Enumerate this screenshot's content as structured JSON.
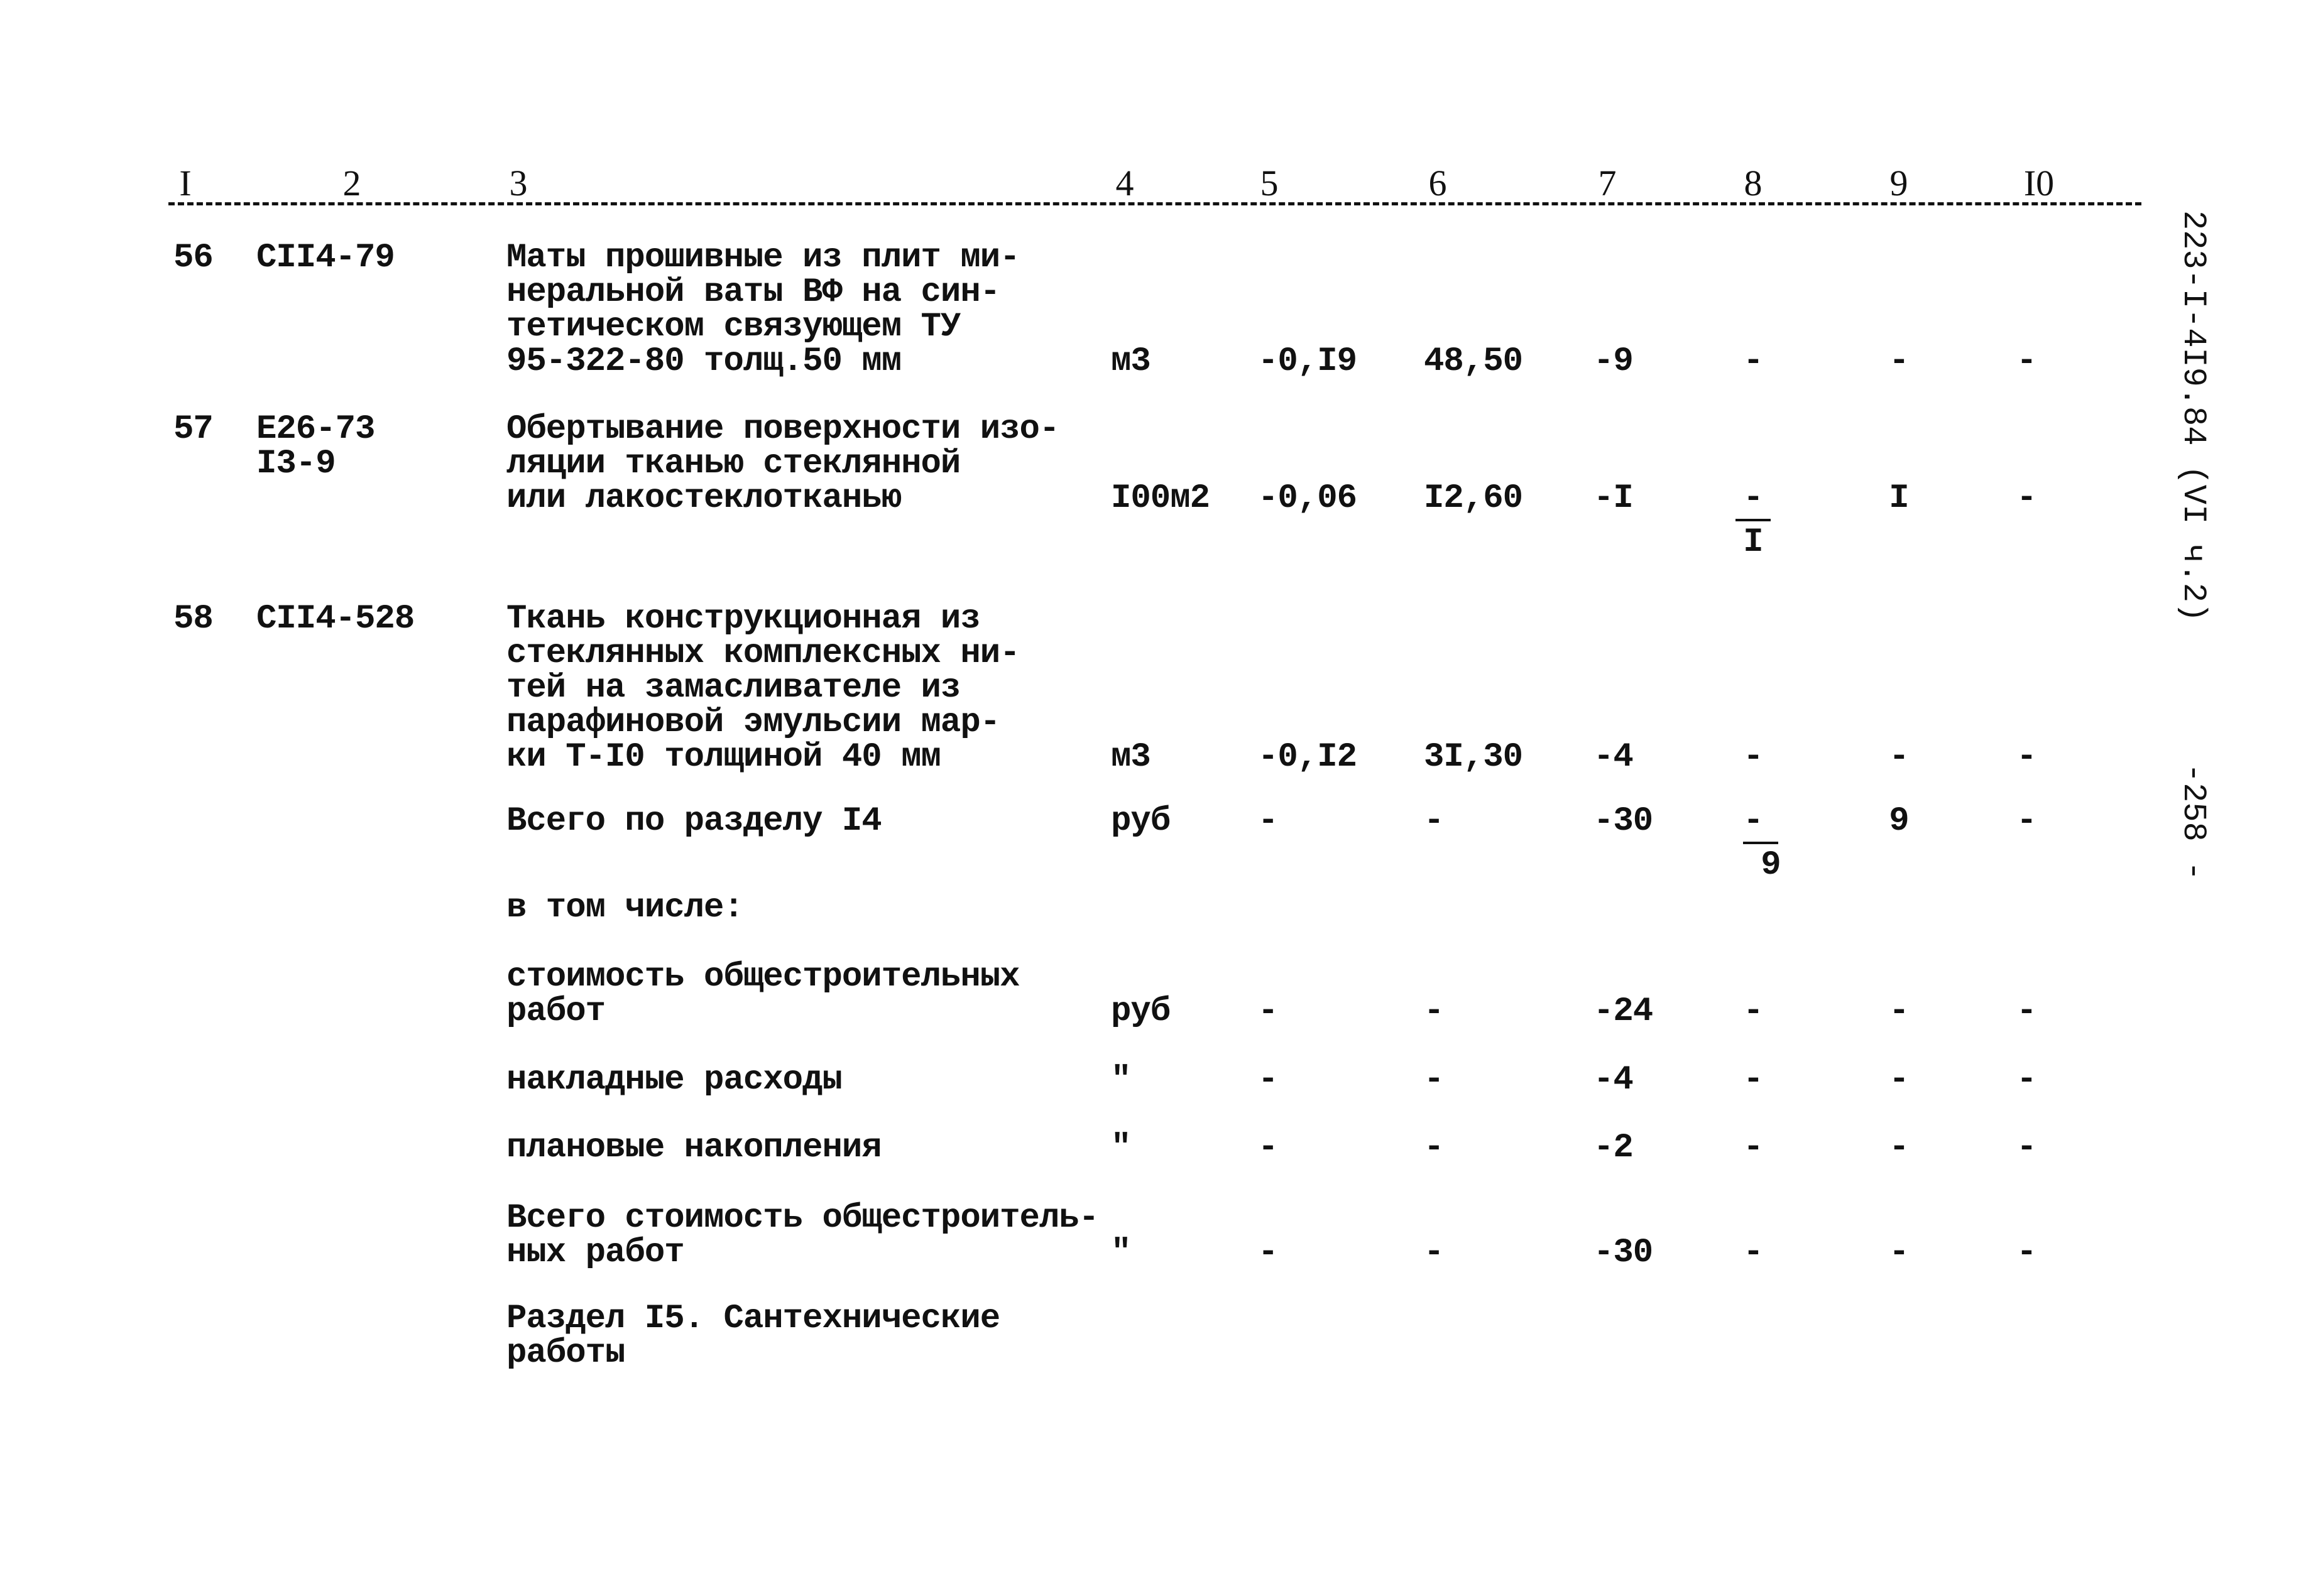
{
  "side_label": "223-I-4I9.84 (VI ч.2)",
  "page_number": "-258 -",
  "columns": [
    "I",
    "2",
    "3",
    "4",
    "5",
    "6",
    "7",
    "8",
    "9",
    "I0"
  ],
  "rows": [
    {
      "num": "56",
      "code": [
        "СII4-79"
      ],
      "desc": [
        "Маты прошивные из плит ми-",
        "неральной ваты ВФ на син-",
        "тетическом связующем ТУ",
        "95-322-80 толщ.50 мм"
      ],
      "unit": "м3",
      "c5": "-0,I9",
      "c6": "48,50",
      "c7": "-9",
      "c8": "-",
      "c8_lower": "",
      "c9": "-",
      "c10": "-"
    },
    {
      "num": "57",
      "code": [
        "Е26-73",
        "I3-9"
      ],
      "desc": [
        "Обертывание поверхности изо-",
        "ляции тканью стеклянной",
        "или лакостеклотканью"
      ],
      "unit": "I00м2",
      "c5": "-0,06",
      "c6": "I2,60",
      "c7": "-I",
      "c8": "-",
      "c8_lower": "I",
      "c9": "I",
      "c10": "-"
    },
    {
      "num": "58",
      "code": [
        "СII4-528"
      ],
      "desc": [
        "Ткань конструкционная из",
        "стеклянных комплексных ни-",
        "тей на замасливателе из",
        "парафиновой эмульсии мар-",
        "ки Т-I0 толщиной 40 мм"
      ],
      "unit": "м3",
      "c5": "-0,I2",
      "c6": "3I,30",
      "c7": "-4",
      "c8": "-",
      "c8_lower": "",
      "c9": "-",
      "c10": "-"
    },
    {
      "num": "",
      "code": [],
      "desc": [
        "Всего по разделу I4"
      ],
      "unit": "руб",
      "c5": "-",
      "c6": "-",
      "c7": "-30",
      "c8": "-",
      "c8_lower": "9",
      "c9": "9",
      "c10": "-"
    },
    {
      "num": "",
      "code": [],
      "desc": [
        "в том числе:"
      ],
      "unit": "",
      "c5": "",
      "c6": "",
      "c7": "",
      "c8": "",
      "c8_lower": "",
      "c9": "",
      "c10": ""
    },
    {
      "num": "",
      "code": [],
      "desc": [
        "стоимость общестроительных",
        "работ"
      ],
      "unit": "руб",
      "c5": "-",
      "c6": "-",
      "c7": "-24",
      "c8": "-",
      "c8_lower": "",
      "c9": "-",
      "c10": "-"
    },
    {
      "num": "",
      "code": [],
      "desc": [
        "накладные расходы"
      ],
      "unit": "\"",
      "c5": "-",
      "c6": "-",
      "c7": "-4",
      "c8": "-",
      "c8_lower": "",
      "c9": "-",
      "c10": "-"
    },
    {
      "num": "",
      "code": [],
      "desc": [
        "плановые накопления"
      ],
      "unit": "\"",
      "c5": "-",
      "c6": "-",
      "c7": "-2",
      "c8": "-",
      "c8_lower": "",
      "c9": "-",
      "c10": "-"
    },
    {
      "num": "",
      "code": [],
      "desc": [
        "Всего стоимость общестроитель-",
        "ных работ"
      ],
      "unit": "\"",
      "c5": "-",
      "c6": "-",
      "c7": "-30",
      "c8": "-",
      "c8_lower": "",
      "c9": "-",
      "c10": "-"
    },
    {
      "num": "",
      "code": [],
      "desc": [
        "Раздел I5. Сантехнические",
        "работы"
      ],
      "unit": "",
      "c5": "",
      "c6": "",
      "c7": "",
      "c8": "",
      "c8_lower": "",
      "c9": "",
      "c10": ""
    }
  ]
}
